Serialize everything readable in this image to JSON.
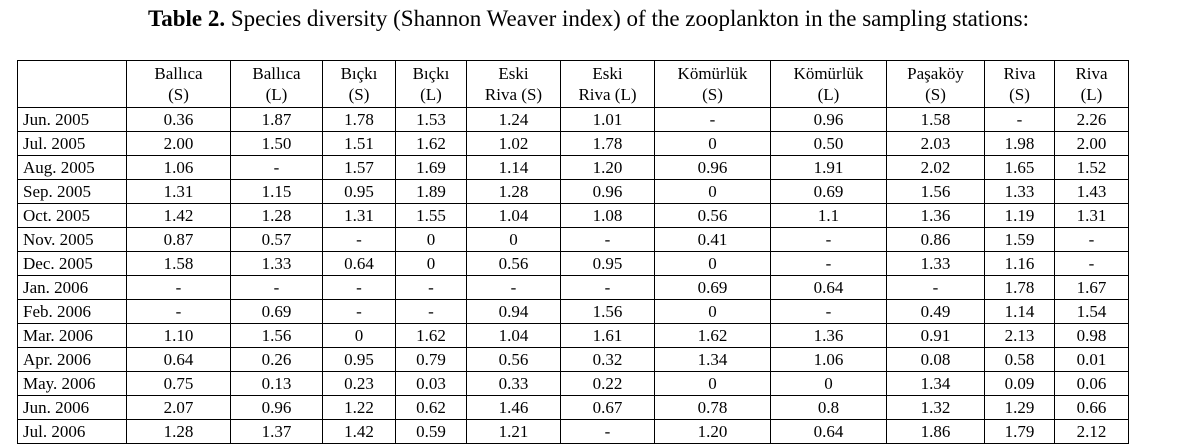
{
  "caption": {
    "label": "Table 2.",
    "text": " Species diversity (Shannon Weaver index) of the zooplankton in the sampling stations:"
  },
  "table": {
    "columns": [
      {
        "line1": "Ballıca",
        "line2": "(S)"
      },
      {
        "line1": "Ballıca",
        "line2": "(L)"
      },
      {
        "line1": "Bıçkı",
        "line2": "(S)"
      },
      {
        "line1": "Bıçkı",
        "line2": "(L)"
      },
      {
        "line1": "Eski",
        "line2": "Riva (S)"
      },
      {
        "line1": "Eski",
        "line2": "Riva (L)"
      },
      {
        "line1": "Kömürlük",
        "line2": "(S)"
      },
      {
        "line1": "Kömürlük",
        "line2": "(L)"
      },
      {
        "line1": "Paşaköy",
        "line2": "(S)"
      },
      {
        "line1": "Riva",
        "line2": "(S)"
      },
      {
        "line1": "Riva",
        "line2": "(L)"
      }
    ],
    "rows": [
      {
        "month": "Jun. 2005",
        "values": [
          "0.36",
          "1.87",
          "1.78",
          "1.53",
          "1.24",
          "1.01",
          "-",
          "0.96",
          "1.58",
          "-",
          "2.26"
        ]
      },
      {
        "month": "Jul. 2005",
        "values": [
          "2.00",
          "1.50",
          "1.51",
          "1.62",
          "1.02",
          "1.78",
          "0",
          "0.50",
          "2.03",
          "1.98",
          "2.00"
        ]
      },
      {
        "month": "Aug. 2005",
        "values": [
          "1.06",
          "-",
          "1.57",
          "1.69",
          "1.14",
          "1.20",
          "0.96",
          "1.91",
          "2.02",
          "1.65",
          "1.52"
        ]
      },
      {
        "month": "Sep. 2005",
        "values": [
          "1.31",
          "1.15",
          "0.95",
          "1.89",
          "1.28",
          "0.96",
          "0",
          "0.69",
          "1.56",
          "1.33",
          "1.43"
        ]
      },
      {
        "month": "Oct. 2005",
        "values": [
          "1.42",
          "1.28",
          "1.31",
          "1.55",
          "1.04",
          "1.08",
          "0.56",
          "1.1",
          "1.36",
          "1.19",
          "1.31"
        ]
      },
      {
        "month": "Nov. 2005",
        "values": [
          "0.87",
          "0.57",
          "-",
          "0",
          "0",
          "-",
          "0.41",
          "-",
          "0.86",
          "1.59",
          "-"
        ]
      },
      {
        "month": "Dec. 2005",
        "values": [
          "1.58",
          "1.33",
          "0.64",
          "0",
          "0.56",
          "0.95",
          "0",
          "-",
          "1.33",
          "1.16",
          "-"
        ]
      },
      {
        "month": "Jan. 2006",
        "values": [
          "-",
          "-",
          "-",
          "-",
          "-",
          "-",
          "0.69",
          "0.64",
          "-",
          "1.78",
          "1.67"
        ]
      },
      {
        "month": "Feb. 2006",
        "values": [
          "-",
          "0.69",
          "-",
          "-",
          "0.94",
          "1.56",
          "0",
          "-",
          "0.49",
          "1.14",
          "1.54"
        ]
      },
      {
        "month": "Mar. 2006",
        "values": [
          "1.10",
          "1.56",
          "0",
          "1.62",
          "1.04",
          "1.61",
          "1.62",
          "1.36",
          "0.91",
          "2.13",
          "0.98"
        ]
      },
      {
        "month": "Apr. 2006",
        "values": [
          "0.64",
          "0.26",
          "0.95",
          "0.79",
          "0.56",
          "0.32",
          "1.34",
          "1.06",
          "0.08",
          "0.58",
          "0.01"
        ]
      },
      {
        "month": "May. 2006",
        "values": [
          "0.75",
          "0.13",
          "0.23",
          "0.03",
          "0.33",
          "0.22",
          "0",
          "0",
          "1.34",
          "0.09",
          "0.06"
        ]
      },
      {
        "month": "Jun. 2006",
        "values": [
          "2.07",
          "0.96",
          "1.22",
          "0.62",
          "1.46",
          "0.67",
          "0.78",
          "0.8",
          "1.32",
          "1.29",
          "0.66"
        ]
      },
      {
        "month": "Jul. 2006",
        "values": [
          "1.28",
          "1.37",
          "1.42",
          "0.59",
          "1.21",
          "-",
          "1.20",
          "0.64",
          "1.86",
          "1.79",
          "2.12"
        ]
      }
    ]
  }
}
